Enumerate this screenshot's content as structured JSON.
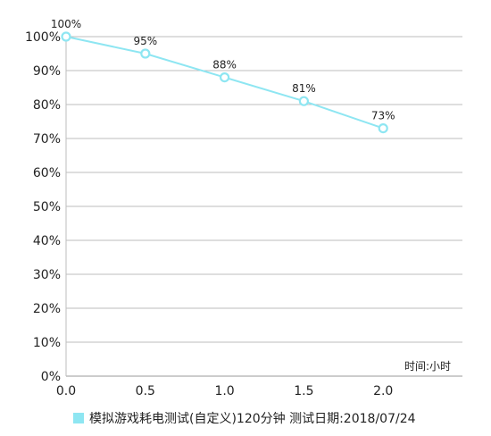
{
  "chart_data": {
    "type": "line",
    "x": [
      0.0,
      0.5,
      1.0,
      1.5,
      2.0
    ],
    "series": [
      {
        "name": "模拟游戏耗电测试(自定义)120分钟  测试日期:2018/07/24",
        "values": [
          100,
          95,
          88,
          81,
          73
        ],
        "labels": [
          "100%",
          "95%",
          "88%",
          "81%",
          "73%"
        ],
        "color": "#8ee6f2"
      }
    ],
    "xlim": [
      0,
      2.5
    ],
    "ylim": [
      0,
      100
    ],
    "x_ticks": [
      "0.0",
      "0.5",
      "1.0",
      "1.5",
      "2.0"
    ],
    "y_ticks": [
      "0%",
      "10%",
      "20%",
      "30%",
      "40%",
      "50%",
      "60%",
      "70%",
      "80%",
      "90%",
      "100%"
    ],
    "unit_label": "时间:小时",
    "grid": true,
    "legend_position": "bottom-left"
  }
}
